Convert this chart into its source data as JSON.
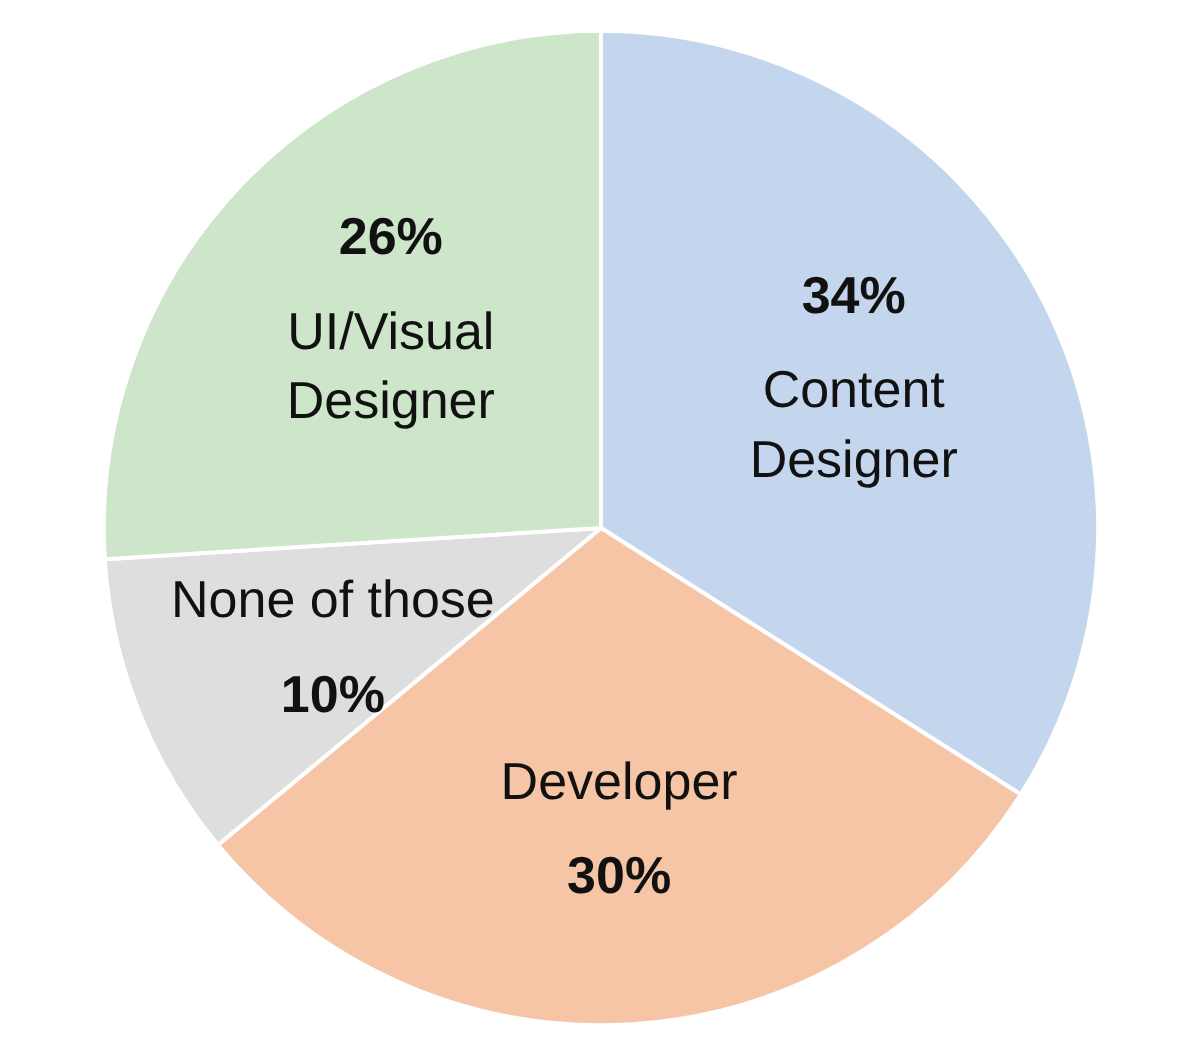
{
  "chart_data": {
    "type": "pie",
    "categories": [
      "Content Designer",
      "Developer",
      "None of those",
      "UI/Visual Designer"
    ],
    "values": [
      34,
      30,
      10,
      26
    ],
    "colors": [
      "#c3d6ee",
      "#f6c5a6",
      "#dedede",
      "#cde6c9"
    ],
    "value_labels": [
      "34%",
      "30%",
      "10%",
      "26%"
    ]
  }
}
